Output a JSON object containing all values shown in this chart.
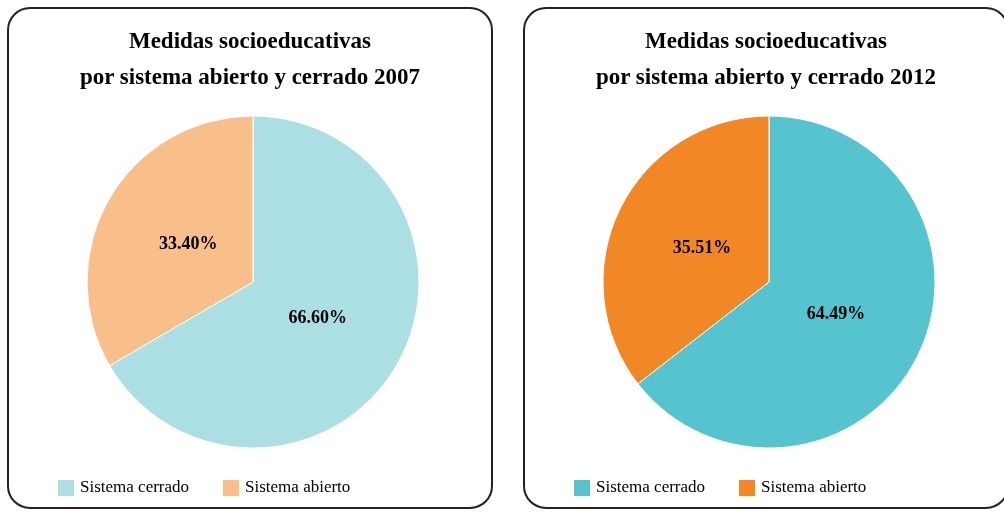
{
  "chart_data": [
    {
      "type": "pie",
      "title": "Medidas socioeducativas\npor sistema abierto y cerrado 2007",
      "categories": [
        "Sistema cerrado",
        "Sistema abierto"
      ],
      "values": [
        66.6,
        33.4
      ],
      "value_labels": [
        "66.60%",
        "33.40%"
      ],
      "colors": [
        "#acdfe3",
        "#f9bf8b"
      ],
      "legend": "bottom"
    },
    {
      "type": "pie",
      "title": "Medidas socioeducativas\npor sistema abierto y cerrado 2012",
      "categories": [
        "Sistema cerrado",
        "Sistema abierto"
      ],
      "values": [
        64.49,
        35.51
      ],
      "value_labels": [
        "64.49%",
        "35.51%"
      ],
      "colors": [
        "#56c4cf",
        "#f28725"
      ],
      "legend": "bottom"
    }
  ]
}
